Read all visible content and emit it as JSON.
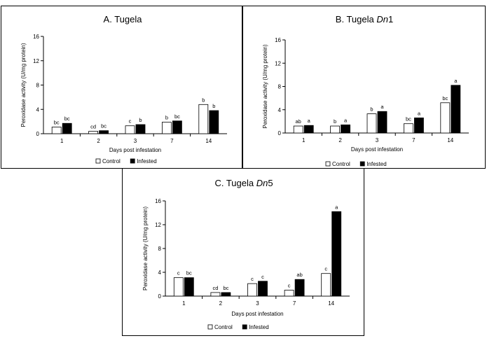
{
  "chart_data": [
    {
      "type": "bar",
      "title": "A. Tugela",
      "title_main": "A. Tugela",
      "title_italic": "",
      "title_suffix": "",
      "categories": [
        "1",
        "2",
        "3",
        "7",
        "14"
      ],
      "xlabel": "Days post infestation",
      "ylabel": "Peroxidase activity (U/mg protein)",
      "ylim": [
        0,
        16
      ],
      "yticks": [
        "0",
        "4",
        "8",
        "12",
        "16"
      ],
      "legend_position": "bottom",
      "grid": false,
      "series": [
        {
          "name": "Control",
          "color": "#ffffff",
          "values": [
            1.1,
            0.4,
            1.3,
            1.9,
            4.8
          ],
          "labels": [
            "bc",
            "cd",
            "c",
            "b",
            "b"
          ]
        },
        {
          "name": "Infested",
          "color": "#000000",
          "values": [
            1.7,
            0.5,
            1.5,
            2.1,
            3.8
          ],
          "labels": [
            "bc",
            "bc",
            "b",
            "bc",
            "b"
          ]
        }
      ]
    },
    {
      "type": "bar",
      "title": "B. Tugela Dn1",
      "title_main": "B. Tugela ",
      "title_italic": "Dn",
      "title_suffix": "1",
      "categories": [
        "1",
        "2",
        "3",
        "7",
        "14"
      ],
      "xlabel": "Days post infestation",
      "ylabel": "Peroxidase activity (U/mg protein)",
      "ylim": [
        0,
        16
      ],
      "yticks": [
        "0",
        "4",
        "8",
        "12",
        "16"
      ],
      "legend_position": "bottom",
      "grid": false,
      "series": [
        {
          "name": "Control",
          "color": "#ffffff",
          "values": [
            1.2,
            1.2,
            3.3,
            1.6,
            5.2
          ],
          "labels": [
            "ab",
            "b",
            "b",
            "bc",
            "bc"
          ]
        },
        {
          "name": "Infested",
          "color": "#000000",
          "values": [
            1.3,
            1.4,
            3.7,
            2.6,
            8.2
          ],
          "labels": [
            "a",
            "a",
            "a",
            "a",
            "a"
          ]
        }
      ]
    },
    {
      "type": "bar",
      "title": "C. Tugela Dn5",
      "title_main": "C. Tugela ",
      "title_italic": "Dn",
      "title_suffix": "5",
      "categories": [
        "1",
        "2",
        "3",
        "7",
        "14"
      ],
      "xlabel": "Days post infestation",
      "ylabel": "Peroxidase activity (U/mg protein)",
      "ylim": [
        0,
        16
      ],
      "yticks": [
        "0",
        "4",
        "8",
        "12",
        "16"
      ],
      "legend_position": "bottom",
      "grid": false,
      "series": [
        {
          "name": "Control",
          "color": "#ffffff",
          "values": [
            3.1,
            0.6,
            2.1,
            1.0,
            3.8
          ],
          "labels": [
            "c",
            "cd",
            "c",
            "c",
            "c"
          ]
        },
        {
          "name": "Infested",
          "color": "#000000",
          "values": [
            3.1,
            0.6,
            2.5,
            2.8,
            14.2
          ],
          "labels": [
            "bc",
            "bc",
            "c",
            "ab",
            "a"
          ]
        }
      ]
    }
  ]
}
